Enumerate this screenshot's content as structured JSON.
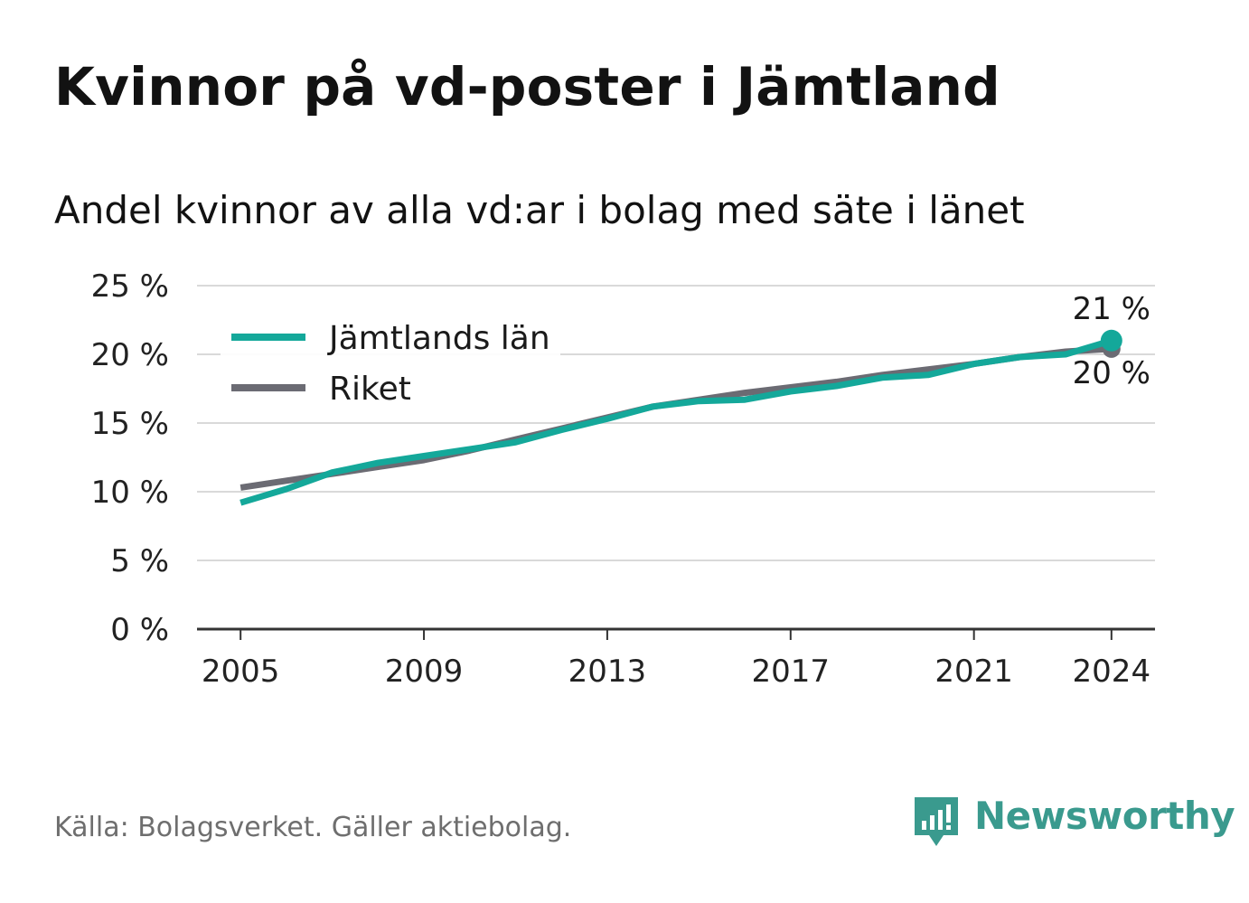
{
  "title": "Kvinnor på vd-poster i Jämtland",
  "subtitle": "Andel kvinnor av alla vd:ar i bolag med säte i länet",
  "source": "Källa: Bolagsverket. Gäller aktiebolag.",
  "brand": {
    "name": "Newsworthy",
    "logo_icon": "bar-chart-speech-bubble-icon",
    "color": "#3a9a8e"
  },
  "chart_data": {
    "type": "line",
    "title": "Kvinnor på vd-poster i Jämtland",
    "subtitle": "Andel kvinnor av alla vd:ar i bolag med säte i länet",
    "xlabel": "",
    "ylabel": "",
    "x": [
      2005,
      2006,
      2007,
      2008,
      2009,
      2010,
      2011,
      2012,
      2013,
      2014,
      2015,
      2016,
      2017,
      2018,
      2019,
      2020,
      2021,
      2022,
      2023,
      2024
    ],
    "x_ticks": [
      2005,
      2009,
      2013,
      2017,
      2021,
      2024
    ],
    "x_tick_labels": [
      "2005",
      "2009",
      "2013",
      "2017",
      "2021",
      "2024"
    ],
    "ylim": [
      0,
      25
    ],
    "y_ticks": [
      0,
      5,
      10,
      15,
      20,
      25
    ],
    "y_tick_labels": [
      "0 %",
      "5 %",
      "10 %",
      "15 %",
      "20 %",
      "25 %"
    ],
    "grid": true,
    "legend_position": "top-left",
    "series": [
      {
        "name": "Riket",
        "color": "#6b6b73",
        "values": [
          10.3,
          10.8,
          11.3,
          11.8,
          12.3,
          13.0,
          13.8,
          14.6,
          15.4,
          16.2,
          16.7,
          17.2,
          17.6,
          18.0,
          18.5,
          18.9,
          19.3,
          19.8,
          20.2,
          20.4
        ],
        "end_label": "20 %"
      },
      {
        "name": "Jämtlands län",
        "color": "#14a89a",
        "values": [
          9.2,
          10.2,
          11.4,
          12.1,
          12.6,
          13.1,
          13.6,
          14.5,
          15.3,
          16.2,
          16.6,
          16.7,
          17.3,
          17.7,
          18.3,
          18.5,
          19.3,
          19.8,
          20.0,
          21.0
        ],
        "end_label": "21 %"
      }
    ]
  }
}
